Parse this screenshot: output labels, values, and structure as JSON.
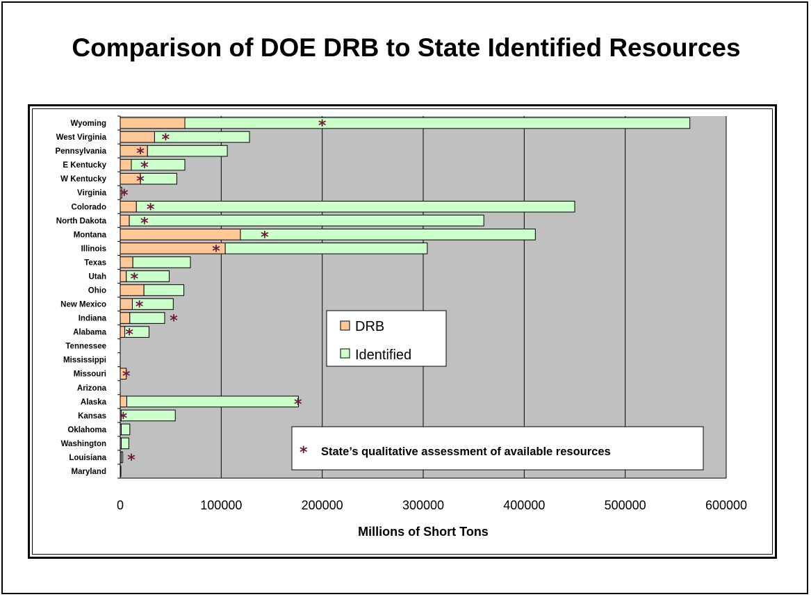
{
  "slide": {
    "title": "Comparison of DOE DRB to State Identified Resources"
  },
  "colors": {
    "drb": "#ffc898",
    "identified": "#ccffcc",
    "plot_background": "#c0c0c0",
    "star": "#6b1d3f"
  },
  "chart_data": {
    "type": "bar",
    "orientation": "horizontal",
    "stacked": true,
    "xlabel": "Millions of Short Tons",
    "ylabel": "",
    "xlim": [
      0,
      600000
    ],
    "x_ticks": [
      "0",
      "100000",
      "200000",
      "300000",
      "400000",
      "500000",
      "600000"
    ],
    "grid": "vertical",
    "legend_position": "center-right",
    "categories": [
      "Wyoming",
      "West Virginia",
      "Pennsylvania",
      "E Kentucky",
      "W Kentucky",
      "Virginia",
      "Colorado",
      "North Dakota",
      "Montana",
      "Illinois",
      "Texas",
      "Utah",
      "Ohio",
      "New Mexico",
      "Indiana",
      "Alabama",
      "Tennessee",
      "Mississippi",
      "Missouri",
      "Arizona",
      "Alaska",
      "Kansas",
      "Oklahoma",
      "Washington",
      "Louisiana",
      "Maryland"
    ],
    "series": [
      {
        "name": "DRB",
        "values": [
          64000,
          34000,
          27000,
          11000,
          20000,
          1500,
          16000,
          9000,
          119000,
          104000,
          12500,
          6000,
          23500,
          12000,
          9500,
          4500,
          0,
          0,
          6000,
          0,
          6500,
          1000,
          1000,
          1000,
          1000,
          500
        ]
      },
      {
        "name": "Identified",
        "values": [
          500000,
          94000,
          79000,
          53000,
          36000,
          0,
          434000,
          351000,
          292000,
          200000,
          57000,
          42500,
          39500,
          40500,
          34500,
          24000,
          0,
          0,
          0,
          0,
          170000,
          53500,
          8500,
          7500,
          1500,
          0
        ]
      }
    ],
    "stars": [
      200000,
      45000,
      20000,
      24000,
      20000,
      4000,
      30000,
      24000,
      143000,
      95000,
      null,
      14000,
      null,
      19000,
      53000,
      9000,
      null,
      null,
      6000,
      null,
      176000,
      3000,
      null,
      null,
      11000,
      null
    ],
    "legend_items": [
      "DRB",
      "Identified"
    ],
    "star_symbol": "*",
    "annotation": "State’s qualitative assessment of available resources"
  }
}
